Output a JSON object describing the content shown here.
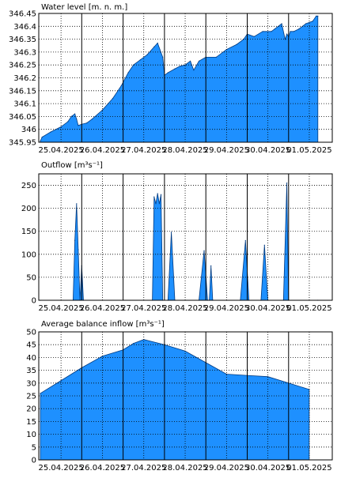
{
  "chart_data": [
    {
      "type": "area",
      "title": "Water level [m. n. m.]",
      "ylim": [
        345.95,
        346.45
      ],
      "y_ticks": [
        "345.95",
        "346",
        "346.05",
        "346.1",
        "346.15",
        "346.2",
        "346.25",
        "346.3",
        "346.35",
        "346.4",
        "346.45"
      ],
      "x_tick_labels": [
        "25.04.2025",
        "26.04.2025",
        "27.04.2025",
        "28.04.2025",
        "29.04.2025",
        "30.04.2025",
        "01.05.2025"
      ],
      "grid": true,
      "fill_color": "#1e90ff",
      "x": [
        "25.04.2025 00:00",
        "25.04.2025 01:00",
        "25.04.2025 06:00",
        "25.04.2025 12:00",
        "25.04.2025 16:00",
        "25.04.2025 18:00",
        "25.04.2025 20:00",
        "25.04.2025 21:00",
        "25.04.2025 22:00",
        "26.04.2025 00:00",
        "26.04.2025 03:00",
        "26.04.2025 06:00",
        "26.04.2025 12:00",
        "26.04.2025 18:00",
        "26.04.2025 23:00",
        "27.04.2025 03:00",
        "27.04.2025 06:00",
        "27.04.2025 10:00",
        "27.04.2025 14:00",
        "27.04.2025 18:00",
        "27.04.2025 20:00",
        "27.04.2025 23:00",
        "28.04.2025 00:00",
        "28.04.2025 02:00",
        "28.04.2025 06:00",
        "28.04.2025 09:00",
        "28.04.2025 12:00",
        "28.04.2025 15:00",
        "28.04.2025 17:00",
        "28.04.2025 20:00",
        "29.04.2025 00:00",
        "29.04.2025 06:00",
        "29.04.2025 12:00",
        "29.04.2025 18:00",
        "29.04.2025 22:00",
        "30.04.2025 00:00",
        "30.04.2025 04:00",
        "30.04.2025 09:00",
        "30.04.2025 14:00",
        "30.04.2025 16:00",
        "30.04.2025 20:00",
        "30.04.2025 22:00",
        "30.04.2025 23:00",
        "01.05.2025 00:00",
        "01.05.2025 01:00",
        "01.05.2025 03:00",
        "01.05.2025 06:00",
        "01.05.2025 10:00",
        "01.05.2025 14:00",
        "01.05.2025 16:00",
        "01.05.2025 17:00"
      ],
      "values": [
        345.955,
        345.97,
        345.99,
        346.01,
        346.03,
        346.05,
        346.06,
        346.04,
        346.015,
        346.02,
        346.025,
        346.04,
        346.075,
        346.12,
        346.17,
        346.22,
        346.25,
        346.27,
        346.29,
        346.32,
        346.335,
        346.28,
        346.21,
        346.22,
        346.235,
        346.245,
        346.25,
        346.265,
        346.23,
        346.265,
        346.28,
        346.28,
        346.31,
        346.33,
        346.35,
        346.37,
        346.36,
        346.38,
        346.38,
        346.39,
        346.41,
        346.35,
        346.37,
        346.36,
        346.38,
        346.38,
        346.39,
        346.41,
        346.42,
        346.44,
        346.44
      ]
    },
    {
      "type": "area",
      "title": "Outflow [m³s⁻¹]",
      "ylim": [
        0,
        275
      ],
      "y_ticks": [
        "0",
        "50",
        "100",
        "150",
        "200",
        "250"
      ],
      "x_tick_labels": [
        "25.04.2025",
        "26.04.2025",
        "27.04.2025",
        "28.04.2025",
        "29.04.2025",
        "30.04.2025",
        "01.05.2025"
      ],
      "grid": true,
      "fill_color": "#1e90ff",
      "x": [
        "25.04.2025 00:00",
        "25.04.2025 19:00",
        "25.04.2025 20:00",
        "25.04.2025 21:00",
        "25.04.2025 22:00",
        "25.04.2025 23:00",
        "26.04.2025 00:00",
        "26.04.2025 01:00",
        "27.04.2025 17:00",
        "27.04.2025 18:00",
        "27.04.2025 19:00",
        "27.04.2025 20:00",
        "27.04.2025 21:00",
        "27.04.2025 22:00",
        "27.04.2025 23:00",
        "28.04.2025 02:00",
        "28.04.2025 04:00",
        "28.04.2025 06:00",
        "28.04.2025 20:00",
        "28.04.2025 23:00",
        "29.04.2025 01:00",
        "29.04.2025 02:00",
        "29.04.2025 03:00",
        "29.04.2025 04:00",
        "29.04.2025 20:00",
        "29.04.2025 23:00",
        "30.04.2025 01:00",
        "30.04.2025 08:00",
        "30.04.2025 10:00",
        "30.04.2025 12:00",
        "30.04.2025 21:00",
        "30.04.2025 23:00",
        "01.05.2025 00:00",
        "01.05.2025 17:00"
      ],
      "values": [
        0,
        0,
        130,
        210,
        110,
        0,
        75,
        0,
        0,
        225,
        210,
        232,
        210,
        230,
        0,
        0,
        148,
        0,
        0,
        108,
        0,
        0,
        75,
        0,
        0,
        130,
        0,
        0,
        120,
        0,
        0,
        255,
        0,
        0
      ]
    },
    {
      "type": "area",
      "title": "Average balance inflow  [m³s⁻¹]",
      "ylim": [
        0,
        50
      ],
      "y_ticks": [
        "0",
        "5",
        "10",
        "15",
        "20",
        "25",
        "30",
        "35",
        "40",
        "45",
        "50"
      ],
      "x_tick_labels": [
        "25.04.2025",
        "26.04.2025",
        "27.04.2025",
        "28.04.2025",
        "29.04.2025",
        "30.04.2025",
        "01.05.2025"
      ],
      "grid": true,
      "fill_color": "#1e90ff",
      "x": [
        "25.04.2025 00:00",
        "25.04.2025 12:00",
        "26.04.2025 00:00",
        "26.04.2025 12:00",
        "27.04.2025 00:00",
        "27.04.2025 06:00",
        "27.04.2025 12:00",
        "28.04.2025 00:00",
        "28.04.2025 12:00",
        "29.04.2025 00:00",
        "29.04.2025 12:00",
        "30.04.2025 00:00",
        "30.04.2025 12:00",
        "01.05.2025 00:00",
        "01.05.2025 12:00"
      ],
      "values": [
        26,
        31,
        36,
        40.5,
        43,
        45.5,
        47,
        45,
        42.5,
        38,
        33.5,
        33,
        32.5,
        30,
        27.5
      ]
    }
  ]
}
